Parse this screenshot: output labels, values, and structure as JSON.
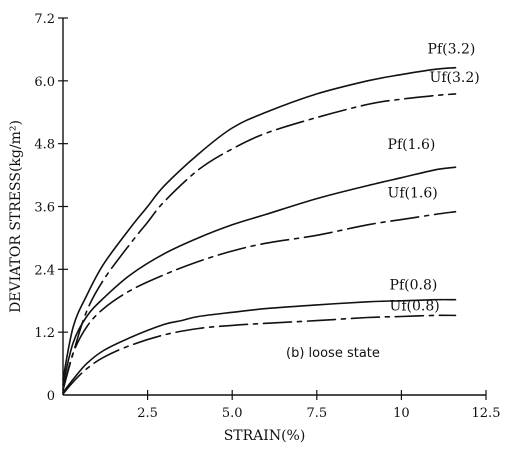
{
  "chart_data": {
    "type": "line",
    "xlabel": "STRAIN(%)",
    "ylabel": "DEVIATOR STRESS(kg/m²)",
    "xlim": [
      0,
      12.5
    ],
    "ylim": [
      0,
      7.2
    ],
    "x_ticks": [
      "2.5",
      "5.0",
      "7.5",
      "10",
      "12.5"
    ],
    "y_ticks": [
      "0",
      "1.2",
      "2.4",
      "3.6",
      "4.8",
      "6.0",
      "7.2"
    ],
    "grid": false,
    "annotation": "(b) loose state",
    "series": [
      {
        "name": "Pf(3.2)",
        "style": "solid",
        "x": [
          0,
          0.3,
          0.7,
          1.2,
          2.0,
          2.5,
          3.0,
          4.0,
          5.0,
          6.0,
          7.5,
          9.0,
          10.0,
          11.0,
          11.6
        ],
        "y": [
          0.3,
          1.3,
          1.9,
          2.5,
          3.2,
          3.6,
          4.0,
          4.6,
          5.1,
          5.4,
          5.75,
          6.0,
          6.12,
          6.22,
          6.25
        ]
      },
      {
        "name": "Uf(3.2)",
        "style": "dashdot",
        "x": [
          0,
          0.3,
          0.7,
          1.2,
          2.0,
          2.5,
          3.0,
          4.0,
          5.0,
          6.0,
          7.5,
          9.0,
          10.0,
          11.0,
          11.6
        ],
        "y": [
          0.1,
          0.8,
          1.6,
          2.2,
          2.9,
          3.3,
          3.7,
          4.3,
          4.7,
          5.0,
          5.3,
          5.55,
          5.65,
          5.72,
          5.75
        ]
      },
      {
        "name": "Pf(1.6)",
        "style": "solid",
        "x": [
          0,
          0.3,
          0.7,
          1.2,
          2.0,
          3.0,
          4.0,
          5.0,
          6.0,
          7.5,
          9.0,
          10.0,
          11.0,
          11.6
        ],
        "y": [
          0.2,
          1.0,
          1.5,
          1.85,
          2.3,
          2.7,
          3.0,
          3.25,
          3.45,
          3.75,
          4.0,
          4.15,
          4.3,
          4.35
        ]
      },
      {
        "name": "Uf(1.6)",
        "style": "dashdot",
        "x": [
          0,
          0.3,
          0.7,
          1.2,
          2.0,
          3.0,
          4.0,
          5.0,
          6.0,
          7.5,
          9.0,
          10.0,
          11.0,
          11.6
        ],
        "y": [
          0.1,
          0.8,
          1.3,
          1.65,
          2.0,
          2.3,
          2.55,
          2.75,
          2.9,
          3.05,
          3.25,
          3.35,
          3.45,
          3.5
        ]
      },
      {
        "name": "Pf(0.8)",
        "style": "solid",
        "x": [
          0,
          0.3,
          0.7,
          1.2,
          2.0,
          3.0,
          3.5,
          4.0,
          5.0,
          6.0,
          7.5,
          9.0,
          10.0,
          11.0,
          11.6
        ],
        "y": [
          0.05,
          0.3,
          0.6,
          0.85,
          1.1,
          1.35,
          1.42,
          1.5,
          1.58,
          1.65,
          1.72,
          1.78,
          1.8,
          1.82,
          1.82
        ]
      },
      {
        "name": "Uf(0.8)",
        "style": "dashdot",
        "x": [
          0,
          0.3,
          0.7,
          1.2,
          2.0,
          3.0,
          4.0,
          5.0,
          6.0,
          7.5,
          9.0,
          10.0,
          11.0,
          11.6
        ],
        "y": [
          0.02,
          0.25,
          0.5,
          0.72,
          0.95,
          1.15,
          1.27,
          1.33,
          1.37,
          1.42,
          1.48,
          1.5,
          1.52,
          1.52
        ]
      }
    ]
  }
}
